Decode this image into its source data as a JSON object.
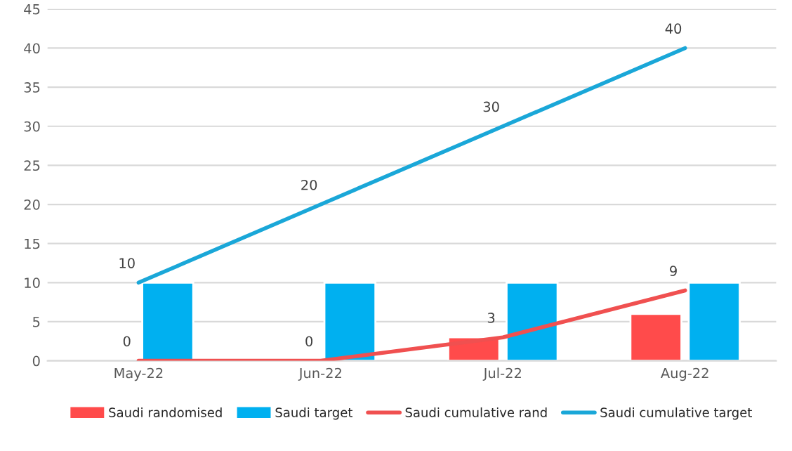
{
  "chart_data": {
    "type": "bar",
    "categories": [
      "May-22",
      "Jun-22",
      "Jul-22",
      "Aug-22"
    ],
    "series": [
      {
        "name": "Saudi randomised",
        "color": "#ff4b4b",
        "values": [
          0,
          0,
          3,
          6
        ]
      },
      {
        "name": "Saudi target",
        "color": "#00b0f0",
        "values": [
          10,
          10,
          10,
          10
        ]
      },
      {
        "name": "Saudi cumulative rand",
        "type": "line",
        "color": "#f05050",
        "values": [
          0,
          0,
          3,
          9
        ],
        "value_labels": [
          "0",
          "0",
          "3",
          "9"
        ]
      },
      {
        "name": "Saudi cumulative target",
        "type": "line",
        "color": "#1aa7d8",
        "values": [
          10,
          20,
          30,
          40
        ],
        "value_labels": [
          "10",
          "20",
          "30",
          "40"
        ]
      }
    ],
    "ylim": [
      0,
      45
    ],
    "yticks": [
      0,
      5,
      10,
      15,
      20,
      25,
      30,
      35,
      40,
      45
    ],
    "grid": "y",
    "legend": "bottom"
  }
}
